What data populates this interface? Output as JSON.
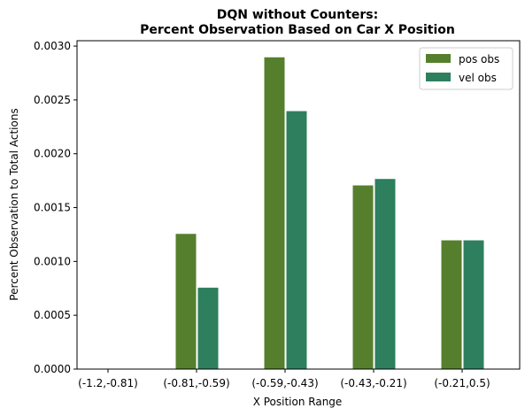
{
  "chart_data": {
    "type": "bar",
    "title_line1": "DQN without Counters:",
    "title_line2": "Percent Observation Based on Car X Position",
    "xlabel": "X Position Range",
    "ylabel": "Percent Observation to Total Actions",
    "categories": [
      "(-1.2,-0.81)",
      "(-0.81,-0.59)",
      "(-0.59,-0.43)",
      "(-0.43,-0.21)",
      "(-0.21,0.5)"
    ],
    "series": [
      {
        "name": "pos obs",
        "color": "#557f2d",
        "values": [
          0.0,
          0.00126,
          0.0029,
          0.00171,
          0.0012
        ]
      },
      {
        "name": "vel obs",
        "color": "#2d7f5e",
        "values": [
          0.0,
          0.00076,
          0.0024,
          0.00177,
          0.0012
        ]
      }
    ],
    "ylim": [
      0,
      0.00305
    ],
    "yticks": [
      "0.0000",
      "0.0005",
      "0.0010",
      "0.0015",
      "0.0020",
      "0.0025",
      "0.0030"
    ],
    "ytick_values": [
      0,
      0.0005,
      0.001,
      0.0015,
      0.002,
      0.0025,
      0.003
    ],
    "legend_position": "top-right",
    "grid": false
  }
}
